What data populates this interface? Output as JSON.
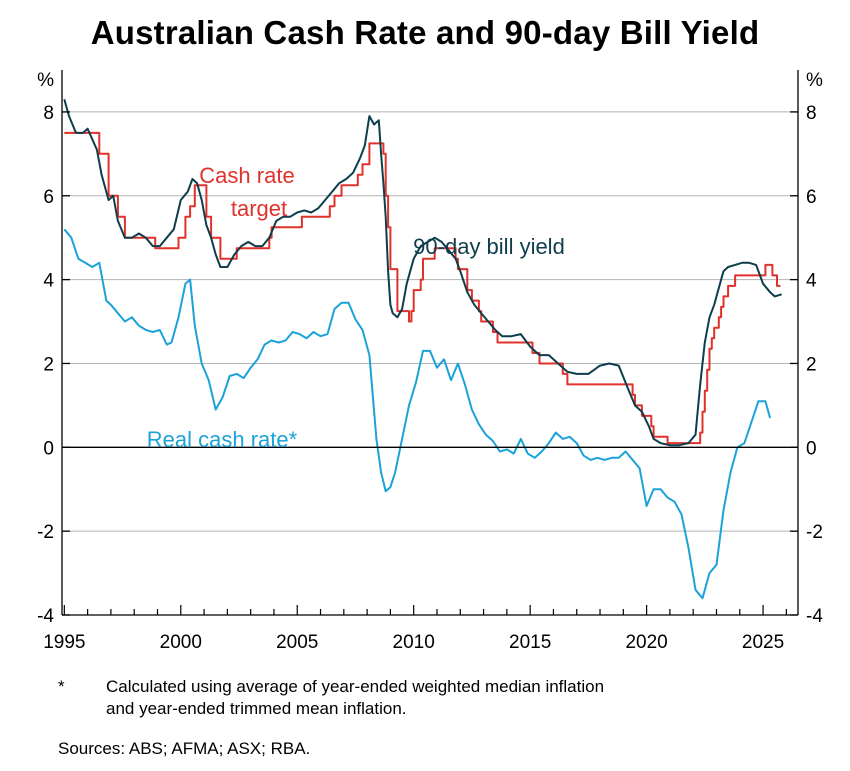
{
  "chart_data": {
    "type": "line",
    "title": "Australian Cash Rate and 90-day Bill Yield",
    "y_unit_left": "%",
    "y_unit_right": "%",
    "ylim": [
      -4,
      9
    ],
    "yticks": [
      -4,
      -2,
      0,
      2,
      4,
      6,
      8
    ],
    "xlim": [
      1994.9,
      2026.5
    ],
    "xticks": [
      1995,
      2000,
      2005,
      2010,
      2015,
      2020,
      2025
    ],
    "grid": true,
    "series": [
      {
        "name": "Cash rate target",
        "color": "#e0312b",
        "style": "step",
        "x": [
          1995.0,
          1996.5,
          1996.9,
          1997.3,
          1997.6,
          1998.9,
          1999.9,
          2000.2,
          2000.4,
          2000.6,
          2001.1,
          2001.3,
          2001.7,
          2002.4,
          2003.8,
          2003.9,
          2005.2,
          2006.4,
          2006.6,
          2006.9,
          2007.6,
          2007.8,
          2008.1,
          2008.7,
          2008.8,
          2008.9,
          2009.0,
          2009.3,
          2009.8,
          2009.9,
          2010.0,
          2010.3,
          2010.4,
          2010.9,
          2011.8,
          2011.9,
          2012.3,
          2012.5,
          2012.8,
          2012.9,
          2013.4,
          2013.6,
          2015.1,
          2015.4,
          2016.4,
          2016.6,
          2019.4,
          2019.5,
          2019.8,
          2020.2,
          2020.3,
          2020.9,
          2022.3,
          2022.4,
          2022.5,
          2022.6,
          2022.7,
          2022.8,
          2022.9,
          2023.1,
          2023.2,
          2023.3,
          2023.5,
          2023.8,
          2025.1,
          2025.4,
          2025.6
        ],
        "y": [
          7.5,
          7.0,
          6.0,
          5.5,
          5.0,
          4.75,
          5.0,
          5.5,
          5.75,
          6.25,
          5.5,
          5.0,
          4.5,
          4.75,
          5.0,
          5.25,
          5.5,
          5.75,
          6.0,
          6.25,
          6.5,
          6.75,
          7.25,
          7.0,
          6.0,
          5.25,
          4.25,
          3.25,
          3.0,
          3.25,
          3.75,
          4.0,
          4.5,
          4.75,
          4.5,
          4.25,
          3.75,
          3.5,
          3.25,
          3.0,
          2.75,
          2.5,
          2.25,
          2.0,
          1.75,
          1.5,
          1.25,
          1.0,
          0.75,
          0.5,
          0.25,
          0.1,
          0.35,
          0.85,
          1.35,
          1.85,
          2.35,
          2.6,
          2.85,
          3.1,
          3.35,
          3.6,
          3.85,
          4.1,
          4.35,
          4.1,
          3.85
        ],
        "data_label": "Cash rate\ntarget"
      },
      {
        "name": "90-day bill yield",
        "color": "#0e3d4c",
        "style": "line",
        "x": [
          1995.0,
          1995.2,
          1995.5,
          1995.8,
          1996.0,
          1996.4,
          1996.6,
          1996.9,
          1997.1,
          1997.3,
          1997.6,
          1997.9,
          1998.2,
          1998.5,
          1998.8,
          1999.1,
          1999.4,
          1999.7,
          2000.0,
          2000.3,
          2000.5,
          2000.7,
          2000.9,
          2001.1,
          2001.3,
          2001.5,
          2001.7,
          2002.0,
          2002.3,
          2002.6,
          2002.9,
          2003.2,
          2003.5,
          2003.8,
          2004.1,
          2004.4,
          2004.7,
          2005.0,
          2005.3,
          2005.6,
          2005.9,
          2006.2,
          2006.5,
          2006.8,
          2007.1,
          2007.4,
          2007.7,
          2007.9,
          2008.1,
          2008.3,
          2008.5,
          2008.6,
          2008.7,
          2008.8,
          2008.9,
          2009.0,
          2009.1,
          2009.3,
          2009.5,
          2009.7,
          2010.0,
          2010.3,
          2010.6,
          2010.9,
          2011.2,
          2011.5,
          2011.8,
          2012.0,
          2012.3,
          2012.6,
          2012.9,
          2013.2,
          2013.5,
          2013.8,
          2014.2,
          2014.6,
          2015.0,
          2015.4,
          2015.8,
          2016.2,
          2016.6,
          2017.0,
          2017.5,
          2018.0,
          2018.4,
          2018.8,
          2019.2,
          2019.5,
          2019.8,
          2020.1,
          2020.3,
          2020.6,
          2021.0,
          2021.4,
          2021.8,
          2022.1,
          2022.3,
          2022.5,
          2022.7,
          2022.9,
          2023.1,
          2023.3,
          2023.5,
          2023.8,
          2024.1,
          2024.4,
          2024.7,
          2025.0,
          2025.3,
          2025.5,
          2025.8
        ],
        "y": [
          8.3,
          7.9,
          7.5,
          7.5,
          7.6,
          7.1,
          6.5,
          5.9,
          6.0,
          5.4,
          5.0,
          5.0,
          5.1,
          5.0,
          4.8,
          4.8,
          5.0,
          5.2,
          5.9,
          6.1,
          6.4,
          6.3,
          5.9,
          5.3,
          5.0,
          4.6,
          4.3,
          4.3,
          4.6,
          4.8,
          4.9,
          4.8,
          4.8,
          5.0,
          5.4,
          5.5,
          5.5,
          5.6,
          5.65,
          5.6,
          5.7,
          5.9,
          6.1,
          6.3,
          6.4,
          6.55,
          6.9,
          7.2,
          7.9,
          7.7,
          7.8,
          7.0,
          6.3,
          5.5,
          4.2,
          3.4,
          3.2,
          3.1,
          3.3,
          3.9,
          4.5,
          4.8,
          4.9,
          5.0,
          4.9,
          4.7,
          4.5,
          4.2,
          3.7,
          3.4,
          3.2,
          3.0,
          2.8,
          2.65,
          2.65,
          2.7,
          2.4,
          2.2,
          2.2,
          2.0,
          1.8,
          1.75,
          1.75,
          1.95,
          2.0,
          1.95,
          1.4,
          1.0,
          0.85,
          0.5,
          0.2,
          0.1,
          0.05,
          0.05,
          0.1,
          0.3,
          1.5,
          2.5,
          3.1,
          3.4,
          3.8,
          4.2,
          4.3,
          4.35,
          4.4,
          4.4,
          4.35,
          3.9,
          3.7,
          3.6,
          3.65
        ],
        "data_label": "90-day bill yield"
      },
      {
        "name": "Real cash rate*",
        "color": "#1ba2d8",
        "style": "line",
        "x": [
          1995.0,
          1995.3,
          1995.6,
          1995.9,
          1996.2,
          1996.5,
          1996.8,
          1997.0,
          1997.3,
          1997.6,
          1997.9,
          1998.2,
          1998.5,
          1998.8,
          1999.1,
          1999.4,
          1999.6,
          1999.9,
          2000.2,
          2000.4,
          2000.6,
          2000.9,
          2001.2,
          2001.5,
          2001.8,
          2002.1,
          2002.4,
          2002.7,
          2003.0,
          2003.3,
          2003.6,
          2003.9,
          2004.2,
          2004.5,
          2004.8,
          2005.1,
          2005.4,
          2005.7,
          2006.0,
          2006.3,
          2006.6,
          2006.9,
          2007.2,
          2007.5,
          2007.8,
          2008.1,
          2008.4,
          2008.6,
          2008.8,
          2009.0,
          2009.2,
          2009.5,
          2009.8,
          2010.1,
          2010.4,
          2010.7,
          2011.0,
          2011.3,
          2011.6,
          2011.9,
          2012.2,
          2012.5,
          2012.8,
          2013.1,
          2013.4,
          2013.7,
          2014.0,
          2014.3,
          2014.6,
          2014.9,
          2015.2,
          2015.5,
          2015.8,
          2016.1,
          2016.4,
          2016.7,
          2017.0,
          2017.3,
          2017.6,
          2017.9,
          2018.2,
          2018.5,
          2018.8,
          2019.1,
          2019.4,
          2019.7,
          2020.0,
          2020.3,
          2020.6,
          2020.9,
          2021.2,
          2021.5,
          2021.8,
          2022.1,
          2022.4,
          2022.7,
          2023.0,
          2023.3,
          2023.6,
          2023.9,
          2024.2,
          2024.5,
          2024.8,
          2025.1,
          2025.3
        ],
        "y": [
          5.2,
          5.0,
          4.5,
          4.4,
          4.3,
          4.4,
          3.5,
          3.4,
          3.2,
          3.0,
          3.1,
          2.9,
          2.8,
          2.75,
          2.8,
          2.45,
          2.5,
          3.1,
          3.9,
          4.0,
          2.9,
          2.0,
          1.6,
          0.9,
          1.2,
          1.7,
          1.75,
          1.65,
          1.9,
          2.1,
          2.45,
          2.55,
          2.5,
          2.55,
          2.75,
          2.7,
          2.6,
          2.75,
          2.65,
          2.7,
          3.3,
          3.45,
          3.45,
          3.05,
          2.8,
          2.2,
          0.2,
          -0.6,
          -1.05,
          -0.95,
          -0.6,
          0.2,
          1.0,
          1.55,
          2.3,
          2.3,
          1.9,
          2.1,
          1.6,
          2.0,
          1.5,
          0.9,
          0.55,
          0.3,
          0.15,
          -0.1,
          -0.05,
          -0.15,
          0.2,
          -0.15,
          -0.25,
          -0.1,
          0.1,
          0.35,
          0.2,
          0.25,
          0.1,
          -0.2,
          -0.3,
          -0.25,
          -0.3,
          -0.25,
          -0.25,
          -0.1,
          -0.3,
          -0.5,
          -1.4,
          -1.0,
          -1.0,
          -1.2,
          -1.3,
          -1.6,
          -2.4,
          -3.4,
          -3.6,
          -3.0,
          -2.8,
          -1.5,
          -0.6,
          0.0,
          0.1,
          0.6,
          1.1,
          1.1,
          0.7
        ],
        "data_label": "Real cash rate*"
      }
    ]
  },
  "footnote": {
    "marker": "*",
    "text_line1": "Calculated using average of year-ended weighted median inflation",
    "text_line2": "and year-ended trimmed mean inflation."
  },
  "sources": "Sources: ABS; AFMA; ASX; RBA.",
  "colors": {
    "cash_rate": "#e0312b",
    "bill_yield": "#0e3d4c",
    "real_rate": "#1ba2d8",
    "grid": "#b3b3b3"
  }
}
